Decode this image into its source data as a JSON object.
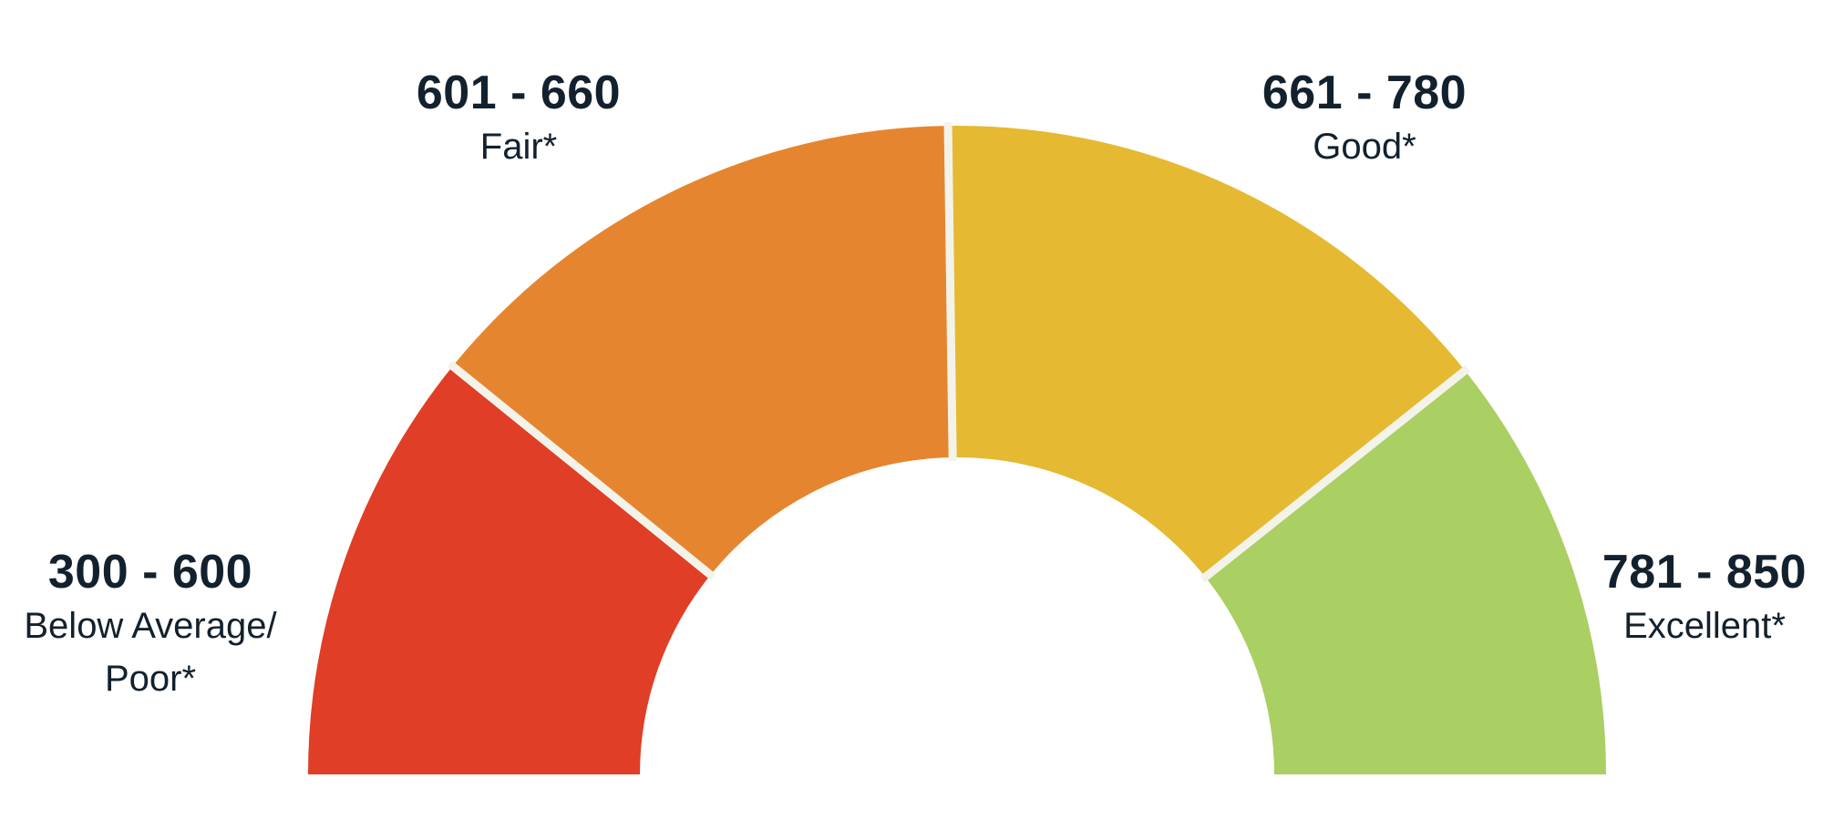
{
  "gauge": {
    "segments": [
      {
        "range": "300 - 600",
        "name": "Below Average/\nPoor*",
        "color": "#e03e26"
      },
      {
        "range": "601 - 660",
        "name": "Fair*",
        "color": "#e6852f"
      },
      {
        "range": "661 - 780",
        "name": "Good*",
        "color": "#e5b932"
      },
      {
        "range": "781 - 850",
        "name": "Excellent*",
        "color": "#aacf62"
      }
    ],
    "separator_color": "#f3f3ea"
  }
}
